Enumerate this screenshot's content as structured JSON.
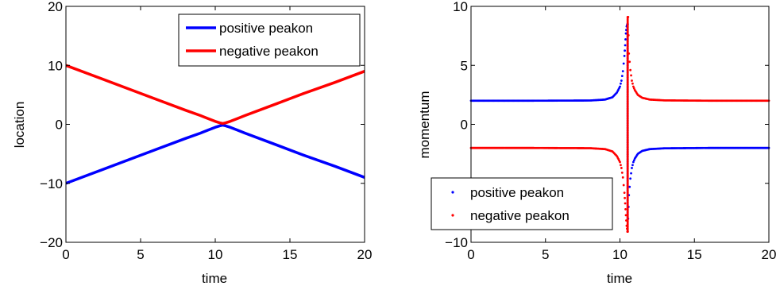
{
  "chart_data": [
    {
      "type": "line",
      "title": "",
      "xlabel": "time",
      "ylabel": "location",
      "xlim": [
        0,
        20
      ],
      "ylim": [
        -20,
        20
      ],
      "xticks": [
        "0",
        "5",
        "10",
        "15",
        "20"
      ],
      "yticks": [
        "20",
        "10",
        "0",
        "−10",
        "−20"
      ],
      "grid": false,
      "legend": "top-right",
      "series": [
        {
          "name": "positive peakon",
          "color": "#0000ff",
          "x": [
            0,
            2,
            4,
            6,
            8,
            9,
            9.5,
            10,
            10.3,
            10.5,
            10.7,
            11,
            11.5,
            12,
            14,
            16,
            18,
            20
          ],
          "values": [
            -10,
            -8.1,
            -6.2,
            -4.3,
            -2.4,
            -1.5,
            -1.0,
            -0.5,
            -0.25,
            -0.15,
            -0.25,
            -0.5,
            -1.0,
            -1.5,
            -3.4,
            -5.3,
            -7.1,
            -9.0
          ]
        },
        {
          "name": "negative peakon",
          "color": "#ff0000",
          "x": [
            0,
            2,
            4,
            6,
            8,
            9,
            9.5,
            10,
            10.3,
            10.5,
            10.7,
            11,
            11.5,
            12,
            14,
            16,
            18,
            20
          ],
          "values": [
            10,
            8.1,
            6.2,
            4.3,
            2.4,
            1.5,
            1.0,
            0.5,
            0.25,
            0.15,
            0.25,
            0.5,
            1.0,
            1.5,
            3.4,
            5.3,
            7.1,
            9.0
          ]
        }
      ]
    },
    {
      "type": "scatter",
      "title": "",
      "xlabel": "time",
      "ylabel": "momentum",
      "xlim": [
        0,
        20
      ],
      "ylim": [
        -10,
        10
      ],
      "xticks": [
        "0",
        "5",
        "10",
        "15",
        "20"
      ],
      "yticks": [
        "10",
        "5",
        "0",
        "−5",
        "−10"
      ],
      "grid": false,
      "legend": "bottom-left",
      "series": [
        {
          "name": "positive peakon",
          "color": "#0000ff",
          "x": [
            0,
            4,
            8,
            9,
            9.5,
            9.8,
            10,
            10.1,
            10.2,
            10.3,
            10.35,
            10.4,
            10.45,
            10.5,
            10.55,
            10.6,
            10.7,
            10.8,
            10.9,
            11,
            11.2,
            11.5,
            12,
            13,
            16,
            20
          ],
          "values": [
            2.0,
            2.0,
            2.02,
            2.1,
            2.3,
            2.7,
            3.2,
            3.7,
            4.5,
            5.8,
            6.7,
            7.7,
            8.3,
            8.5,
            -8.0,
            -6.0,
            -4.6,
            -3.7,
            -3.2,
            -2.9,
            -2.5,
            -2.25,
            -2.1,
            -2.03,
            -2.0,
            -2.0
          ]
        },
        {
          "name": "negative peakon",
          "color": "#ff0000",
          "x": [
            0,
            4,
            8,
            9,
            9.5,
            9.8,
            10,
            10.1,
            10.2,
            10.3,
            10.35,
            10.4,
            10.45,
            10.5,
            10.55,
            10.6,
            10.7,
            10.8,
            10.9,
            11,
            11.2,
            11.5,
            12,
            13,
            16,
            20
          ],
          "values": [
            -2.0,
            -2.0,
            -2.02,
            -2.1,
            -2.3,
            -2.7,
            -3.2,
            -3.7,
            -4.5,
            -5.8,
            -6.7,
            -7.7,
            -8.6,
            -9.1,
            9.1,
            6.0,
            4.6,
            3.7,
            3.2,
            2.9,
            2.5,
            2.25,
            2.1,
            2.03,
            2.0,
            2.0
          ]
        }
      ]
    }
  ]
}
